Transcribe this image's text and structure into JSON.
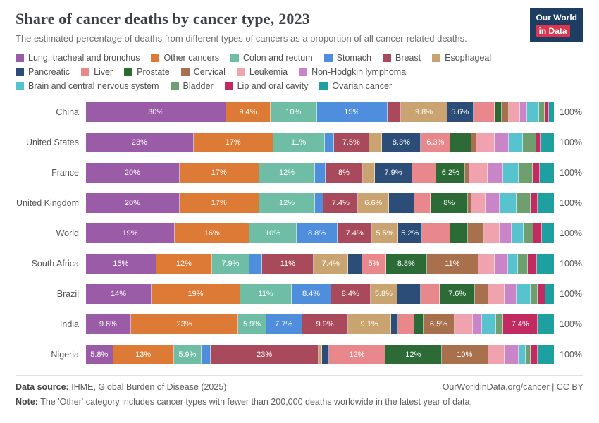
{
  "header": {
    "title": "Share of cancer deaths by cancer type, 2023",
    "subtitle": "The estimated percentage of deaths from different types of cancers as a proportion of all cancer-related deaths."
  },
  "logo": {
    "line1": "Our World",
    "line2": "in Data",
    "bg": "#1d3d63",
    "accent": "#dc354c"
  },
  "footer": {
    "source_label": "Data source:",
    "source_text": " IHME, Global Burden of Disease (2025)",
    "link_text": "OurWorldinData.org/cancer | CC BY",
    "note_label": "Note:",
    "note_text": " The 'Other' category includes cancer types with fewer than 200,000 deaths worldwide in the latest year of data."
  },
  "chart_data": {
    "type": "bar",
    "stacked": true,
    "orientation": "horizontal",
    "unit": "%",
    "row_total_label": "100%",
    "categories": [
      "China",
      "United States",
      "France",
      "United Kingdom",
      "World",
      "South Africa",
      "Brazil",
      "India",
      "Nigeria"
    ],
    "legend_rows": [
      [
        0,
        1,
        2,
        3,
        4,
        5
      ],
      [
        6,
        7,
        8,
        9,
        10,
        11
      ],
      [
        12,
        13,
        14,
        15
      ]
    ],
    "series": [
      {
        "name": "Lung, tracheal and bronchus",
        "color": "#9a5ca6",
        "values": [
          30,
          23,
          20,
          20,
          19,
          15,
          14,
          9.6,
          5.8
        ],
        "labels": [
          "30%",
          "23%",
          "20%",
          "20%",
          "19%",
          "15%",
          "14%",
          "9.6%",
          "5.8%"
        ]
      },
      {
        "name": "Other cancers",
        "color": "#dd7a35",
        "values": [
          9.4,
          17,
          17,
          17,
          16,
          12,
          19,
          23,
          13
        ],
        "labels": [
          "9.4%",
          "17%",
          "17%",
          "17%",
          "16%",
          "12%",
          "19%",
          "23%",
          "13%"
        ]
      },
      {
        "name": "Colon and rectum",
        "color": "#6fbda4",
        "values": [
          10,
          11,
          12,
          12,
          10,
          7.9,
          11,
          5.9,
          5.9
        ],
        "labels": [
          "10%",
          "11%",
          "12%",
          "12%",
          "10%",
          "7.9%",
          "11%",
          "5.9%",
          "5.9%"
        ]
      },
      {
        "name": "Stomach",
        "color": "#4f8edd",
        "values": [
          15,
          2.0,
          2.2,
          1.8,
          8.8,
          2.8,
          8.4,
          7.7,
          2.0
        ],
        "labels": [
          "15%",
          "",
          "",
          "",
          "8.8%",
          "",
          "8.4%",
          "7.7%",
          ""
        ]
      },
      {
        "name": "Breast",
        "color": "#a84a5c",
        "values": [
          3.0,
          7.5,
          8,
          7.4,
          7.4,
          11,
          8.4,
          9.9,
          23
        ],
        "labels": [
          "",
          "7.5%",
          "8%",
          "7.4%",
          "7.4%",
          "11%",
          "8.4%",
          "9.9%",
          "23%"
        ]
      },
      {
        "name": "Esophageal",
        "color": "#c9a370",
        "values": [
          9.8,
          2.8,
          2.6,
          6.6,
          5.5,
          7.4,
          5.8,
          9.1,
          0.8
        ],
        "labels": [
          "9.8%",
          "",
          "",
          "6.6%",
          "5.5%",
          "7.4%",
          "5.8%",
          "9.1%",
          ""
        ]
      },
      {
        "name": "Pancreatic",
        "color": "#2c4d78",
        "values": [
          5.6,
          8.3,
          7.9,
          5.4,
          5.2,
          3.0,
          5.0,
          1.5,
          1.5
        ],
        "labels": [
          "5.6%",
          "8.3%",
          "7.9%",
          "",
          "5.2%",
          "",
          "",
          "",
          ""
        ]
      },
      {
        "name": "Liver",
        "color": "#e8878c",
        "values": [
          4.5,
          6.3,
          5.2,
          3.5,
          6.0,
          5.0,
          4.0,
          3.5,
          12
        ],
        "labels": [
          "",
          "6.3%",
          "",
          "",
          "",
          "5%",
          "",
          "",
          "12%"
        ]
      },
      {
        "name": "Prostate",
        "color": "#2c6b36",
        "values": [
          1.5,
          4.5,
          6.2,
          8.0,
          3.8,
          8.8,
          7.6,
          2.0,
          12
        ],
        "labels": [
          "",
          "",
          "6.2%",
          "8%",
          "",
          "8.8%",
          "7.6%",
          "",
          "12%"
        ]
      },
      {
        "name": "Cervical",
        "color": "#a9704d",
        "values": [
          1.5,
          1.0,
          0.8,
          0.7,
          3.4,
          11,
          2.8,
          6.5,
          10
        ],
        "labels": [
          "",
          "",
          "",
          "",
          "",
          "11%",
          "",
          "6.5%",
          "10%"
        ]
      },
      {
        "name": "Leukemia",
        "color": "#f0a2ae",
        "values": [
          2.5,
          4.0,
          4.0,
          3.0,
          3.3,
          3.5,
          3.5,
          4.0,
          3.5
        ],
        "labels": [
          "",
          "",
          "",
          "",
          "",
          "",
          "",
          "",
          ""
        ]
      },
      {
        "name": "Non-Hodgkin lymphoma",
        "color": "#c885c8",
        "values": [
          1.5,
          3.0,
          3.2,
          3.0,
          2.6,
          2.8,
          2.5,
          2.0,
          3.0
        ],
        "labels": [
          "",
          "",
          "",
          "",
          "",
          "",
          "",
          "",
          ""
        ]
      },
      {
        "name": "Brain and central nervous system",
        "color": "#57c3cf",
        "values": [
          2.5,
          3.0,
          3.4,
          3.6,
          2.5,
          2.2,
          3.0,
          3.0,
          1.5
        ],
        "labels": [
          "",
          "",
          "",
          "",
          "",
          "",
          "",
          "",
          ""
        ]
      },
      {
        "name": "Bladder",
        "color": "#6f9e6f",
        "values": [
          1.2,
          2.8,
          3.0,
          3.0,
          2.2,
          2.0,
          1.6,
          1.5,
          1.0
        ],
        "labels": [
          "",
          "",
          "",
          "",
          "",
          "",
          "",
          "",
          ""
        ]
      },
      {
        "name": "Lip and oral cavity",
        "color": "#c22a62",
        "values": [
          1.0,
          1.0,
          1.5,
          1.5,
          1.8,
          2.0,
          1.6,
          7.4,
          1.5
        ],
        "labels": [
          "",
          "",
          "",
          "",
          "",
          "",
          "",
          "7.4%",
          ""
        ]
      },
      {
        "name": "Ovarian cancer",
        "color": "#1fa0a0",
        "values": [
          1.0,
          2.8,
          3.0,
          3.5,
          2.5,
          3.6,
          1.8,
          3.4,
          3.5
        ],
        "labels": [
          "",
          "",
          "",
          "",
          "",
          "",
          "",
          "",
          ""
        ]
      }
    ]
  }
}
